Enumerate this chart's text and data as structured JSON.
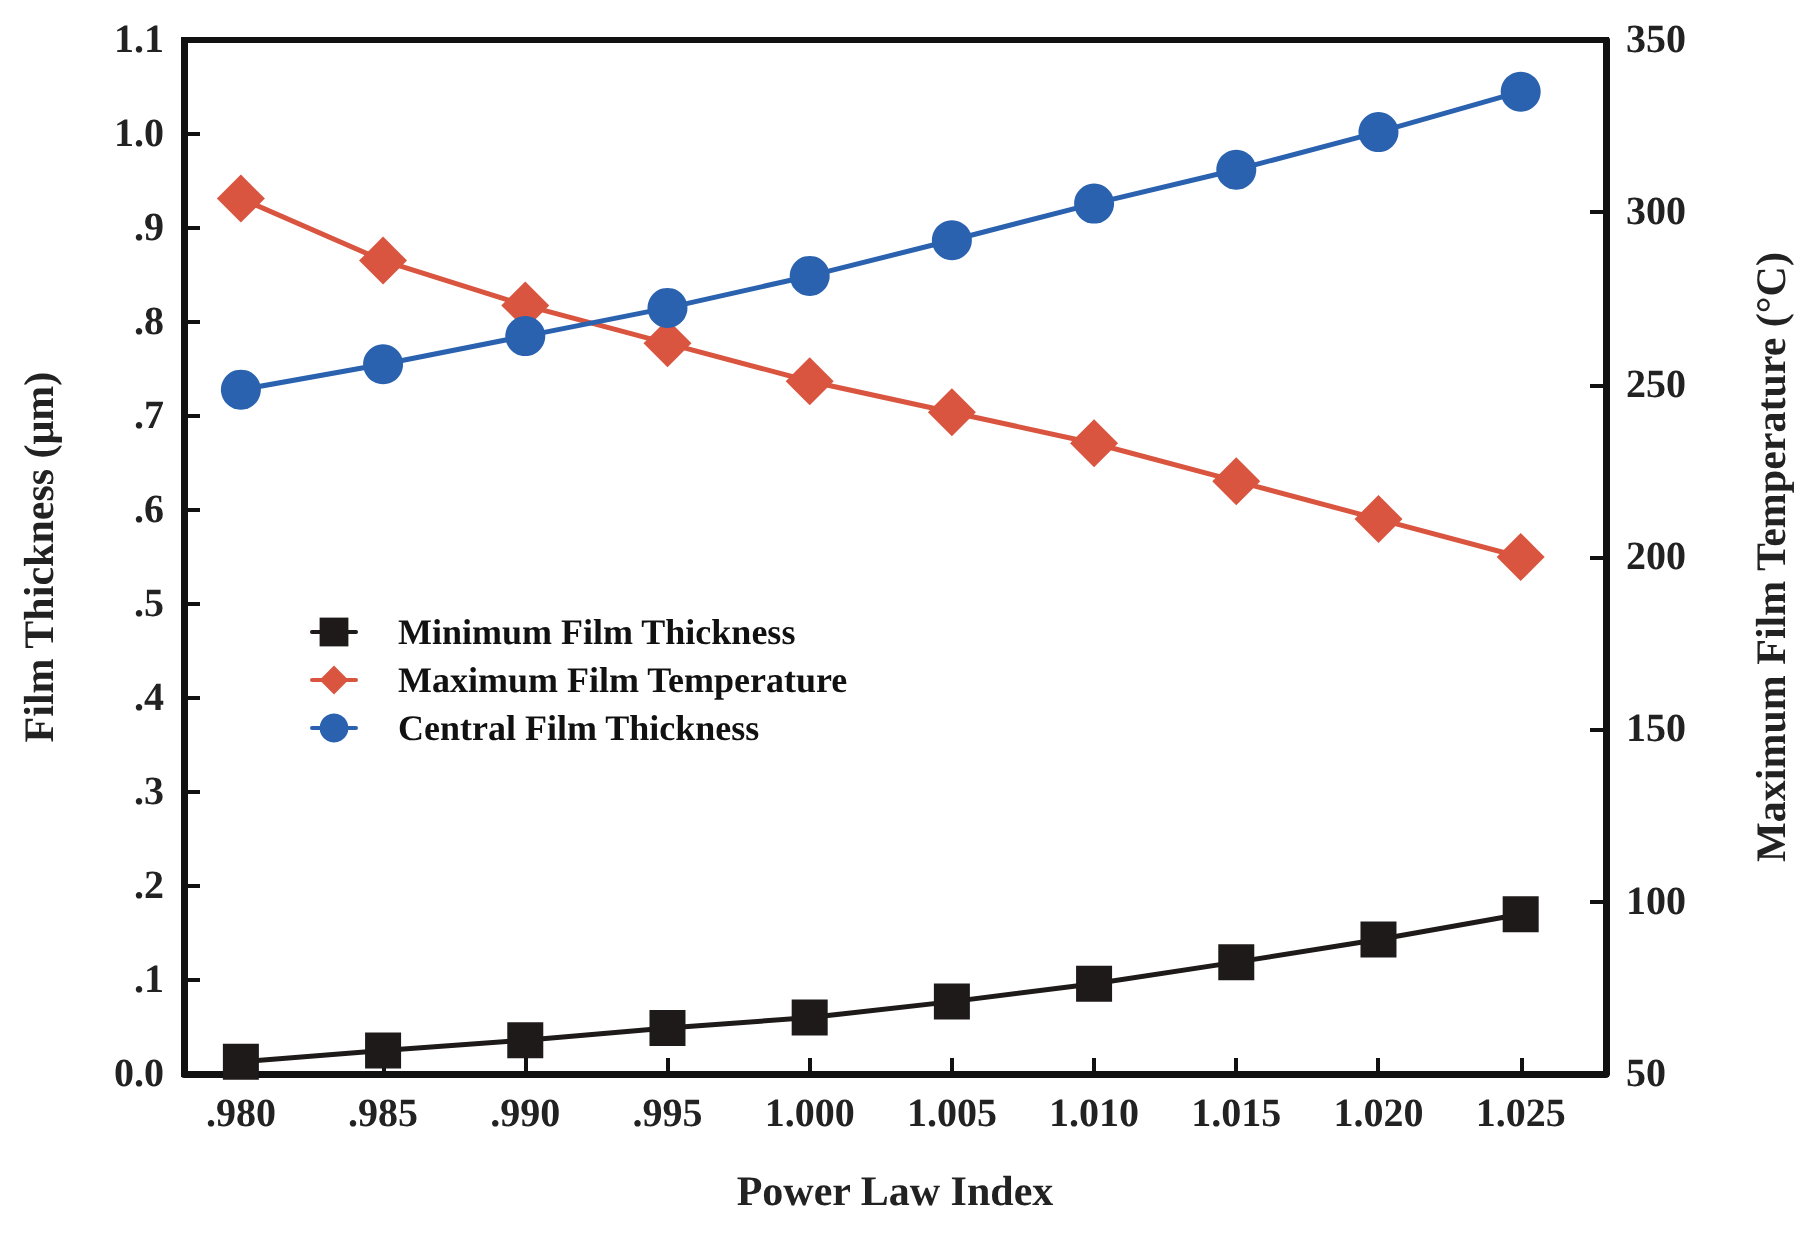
{
  "chart_data": {
    "type": "line",
    "xlabel": "Power Law Index",
    "ylabel": "Film Thickness (μm)",
    "y2label": "Maximum Film Temperature (°C)",
    "x": [
      0.98,
      0.985,
      0.99,
      0.995,
      1.0,
      1.005,
      1.01,
      1.015,
      1.02,
      1.025
    ],
    "series": [
      {
        "name": "Minimum Film Thickness",
        "color": "#1f1a1a",
        "marker": "square",
        "values": [
          0.013,
          0.025,
          0.036,
          0.049,
          0.06,
          0.077,
          0.096,
          0.119,
          0.143,
          0.17
        ]
      },
      {
        "name": "Maximum Film Temperature",
        "color": "#d9553f",
        "marker": "diamond",
        "axis": "y2",
        "values": [
          304,
          286,
          273,
          262,
          251,
          242,
          233,
          222,
          211,
          200
        ]
      },
      {
        "name": "Central Film Thickness",
        "color": "#2a62b0",
        "marker": "circle",
        "values": [
          0.728,
          0.755,
          0.785,
          0.815,
          0.849,
          0.887,
          0.926,
          0.962,
          1.002,
          1.045
        ]
      }
    ],
    "xlim": [
      0.978,
      1.028
    ],
    "xticks": [
      {
        "value": 0.98,
        "label": ".980"
      },
      {
        "value": 0.985,
        "label": ".985"
      },
      {
        "value": 0.99,
        "label": ".990"
      },
      {
        "value": 0.995,
        "label": ".995"
      },
      {
        "value": 1.0,
        "label": "1.000"
      },
      {
        "value": 1.005,
        "label": "1.005"
      },
      {
        "value": 1.01,
        "label": "1.010"
      },
      {
        "value": 1.015,
        "label": "1.015"
      },
      {
        "value": 1.02,
        "label": "1.020"
      },
      {
        "value": 1.025,
        "label": "1.025"
      }
    ],
    "ylim": [
      0,
      1.1
    ],
    "yticks": [
      {
        "value": 0,
        "label": "0.0"
      },
      {
        "value": 0.1,
        "label": ".1"
      },
      {
        "value": 0.2,
        "label": ".2"
      },
      {
        "value": 0.3,
        "label": ".3"
      },
      {
        "value": 0.4,
        "label": ".4"
      },
      {
        "value": 0.5,
        "label": ".5"
      },
      {
        "value": 0.6,
        "label": ".6"
      },
      {
        "value": 0.7,
        "label": ".7"
      },
      {
        "value": 0.8,
        "label": ".8"
      },
      {
        "value": 0.9,
        "label": ".9"
      },
      {
        "value": 1.0,
        "label": "1.0"
      },
      {
        "value": 1.1,
        "label": "1.1"
      }
    ],
    "y2lim": [
      50,
      350
    ],
    "y2ticks": [
      50,
      100,
      150,
      200,
      250,
      300,
      350
    ],
    "legend": "left",
    "grid": false,
    "line_style": "solid"
  }
}
